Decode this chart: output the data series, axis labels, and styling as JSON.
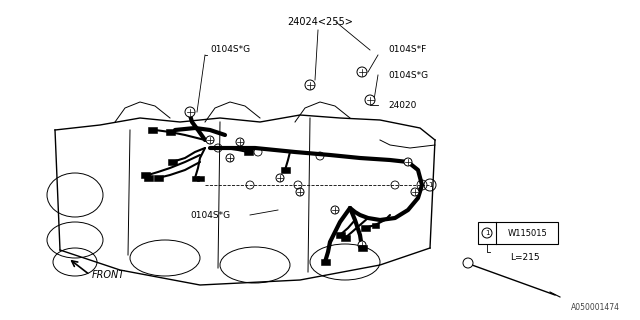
{
  "background_color": "#ffffff",
  "fig_width": 6.4,
  "fig_height": 3.2,
  "dpi": 100,
  "labels": {
    "part_24024": "24024<255>",
    "part_24020": "24020",
    "label_0104SG_1": "0104S*G",
    "label_0104SF": "0104S*F",
    "label_0104SG_2": "0104S*G",
    "label_0104SG_3": "0104S*G",
    "label_front": "FRONT",
    "part_W115015": "W115015",
    "label_L215": "L=215",
    "ref_num_1": "1",
    "part_code": "A050001474"
  }
}
